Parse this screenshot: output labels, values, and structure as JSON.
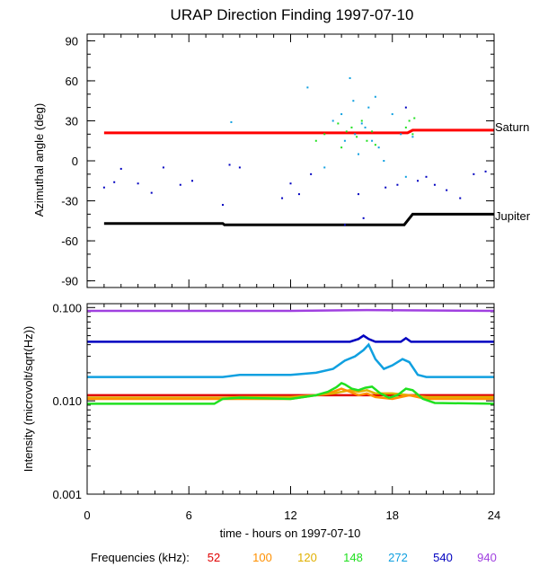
{
  "title": "URAP Direction Finding  1997-07-10",
  "xlabel": "time - hours on 1997-07-10",
  "x_ticks": [
    0,
    6,
    12,
    18,
    24
  ],
  "frequency_legend": {
    "label": "Frequencies (kHz):",
    "items": [
      {
        "name": "52",
        "color": "#e00000"
      },
      {
        "name": "100",
        "color": "#ff9000"
      },
      {
        "name": "120",
        "color": "#e0b000"
      },
      {
        "name": "148",
        "color": "#20e020"
      },
      {
        "name": "272",
        "color": "#10a0e0"
      },
      {
        "name": "540",
        "color": "#0000c0"
      },
      {
        "name": "940",
        "color": "#a040e0"
      }
    ]
  },
  "chart_data": [
    {
      "type": "scatter",
      "title": "URAP Direction Finding  1997-07-10",
      "xlabel": "time - hours on 1997-07-10",
      "ylabel": "Azimuthal angle (deg)",
      "xlim": [
        0,
        24
      ],
      "ylim": [
        -95,
        95
      ],
      "y_ticks": [
        90,
        60,
        30,
        0,
        -30,
        -60,
        -90
      ],
      "lines": [
        {
          "name": "Saturn",
          "color": "#ff0000",
          "x": [
            1,
            18.9,
            19.2,
            24
          ],
          "y": [
            21,
            21,
            23,
            23
          ]
        },
        {
          "name": "Jupiter",
          "color": "#000000",
          "x": [
            1,
            8,
            8.1,
            18.7,
            19.2,
            24
          ],
          "y": [
            -47,
            -47,
            -48,
            -48,
            -40,
            -40
          ]
        }
      ],
      "points": [
        {
          "color": "#0000c0",
          "x": [
            1.0,
            1.6,
            2.0,
            3.0,
            3.8,
            4.5,
            5.5,
            6.2,
            8.0,
            8.4,
            9.0,
            11.5,
            12.0,
            12.5,
            13.2,
            15.2,
            16.0,
            16.3,
            17.6,
            18.3,
            18.8,
            19.5,
            20.0,
            20.5,
            21.2,
            22.0,
            22.8,
            23.5
          ],
          "y": [
            -20,
            -16,
            -6,
            -17,
            -24,
            -5,
            -18,
            -15,
            -33,
            -3,
            -5,
            -28,
            -17,
            -25,
            -10,
            -48,
            -25,
            -43,
            -20,
            -18,
            40,
            -15,
            -12,
            -18,
            -22,
            -28,
            -10,
            -8
          ]
        },
        {
          "color": "#20e020",
          "x": [
            13.5,
            14.0,
            14.8,
            15.0,
            15.3,
            15.6,
            15.9,
            16.2,
            16.5,
            16.8,
            17.0,
            18.8,
            19.0,
            19.2,
            19.3
          ],
          "y": [
            15,
            20,
            28,
            10,
            22,
            25,
            18,
            30,
            15,
            22,
            12,
            25,
            30,
            20,
            32
          ]
        },
        {
          "color": "#10a0e0",
          "x": [
            8.5,
            13.0,
            14.0,
            14.5,
            15.0,
            15.2,
            15.5,
            15.7,
            15.8,
            16.0,
            16.2,
            16.4,
            16.6,
            16.8,
            17.0,
            17.2,
            17.5,
            18.0,
            18.5,
            18.8,
            19.2
          ],
          "y": [
            29,
            55,
            -5,
            30,
            35,
            15,
            62,
            45,
            20,
            5,
            28,
            25,
            40,
            15,
            48,
            10,
            0,
            35,
            20,
            -12,
            18
          ]
        }
      ]
    },
    {
      "type": "line",
      "xlabel": "time - hours on 1997-07-10",
      "ylabel": "Intensity (microvolt/sqrt(Hz))",
      "yscale": "log",
      "xlim": [
        0,
        24
      ],
      "ylim": [
        0.001,
        0.11
      ],
      "y_tick_labels": [
        "0.100",
        "0.010",
        "0.001"
      ],
      "series": [
        {
          "name": "940",
          "color": "#a040e0",
          "x": [
            0,
            12,
            16.5,
            24
          ],
          "y": [
            0.092,
            0.092,
            0.094,
            0.092
          ]
        },
        {
          "name": "540",
          "color": "#0000c0",
          "x": [
            0,
            15.5,
            16.0,
            16.3,
            16.6,
            17.0,
            18.5,
            18.8,
            19.1,
            24
          ],
          "y": [
            0.043,
            0.043,
            0.046,
            0.05,
            0.046,
            0.043,
            0.043,
            0.047,
            0.043,
            0.043
          ]
        },
        {
          "name": "272",
          "color": "#10a0e0",
          "x": [
            0,
            8.0,
            9.0,
            12.0,
            13.5,
            14.5,
            15.2,
            15.8,
            16.3,
            16.6,
            17.0,
            17.5,
            18.0,
            18.6,
            19.0,
            19.5,
            20.0,
            24
          ],
          "y": [
            0.018,
            0.018,
            0.019,
            0.019,
            0.02,
            0.022,
            0.027,
            0.03,
            0.035,
            0.04,
            0.028,
            0.022,
            0.024,
            0.028,
            0.026,
            0.019,
            0.018,
            0.018
          ]
        },
        {
          "name": "52",
          "color": "#e00000",
          "x": [
            0,
            12,
            24
          ],
          "y": [
            0.0115,
            0.0115,
            0.0115
          ]
        },
        {
          "name": "120",
          "color": "#e0b000",
          "x": [
            0,
            8,
            9,
            12,
            13.5,
            14.5,
            15.5,
            16.0,
            16.5,
            17.0,
            18.0,
            19.0,
            20,
            24
          ],
          "y": [
            0.0108,
            0.0108,
            0.011,
            0.011,
            0.0115,
            0.012,
            0.013,
            0.0125,
            0.013,
            0.012,
            0.012,
            0.0115,
            0.011,
            0.011
          ]
        },
        {
          "name": "100",
          "color": "#ff9000",
          "x": [
            0,
            8,
            12,
            13.5,
            14.5,
            15.0,
            15.5,
            16.0,
            16.5,
            17.0,
            18.0,
            19.0,
            20.0,
            24
          ],
          "y": [
            0.0105,
            0.0105,
            0.0105,
            0.0115,
            0.0125,
            0.0135,
            0.0125,
            0.0115,
            0.012,
            0.011,
            0.0105,
            0.0115,
            0.0105,
            0.0105
          ]
        },
        {
          "name": "148",
          "color": "#20e020",
          "x": [
            0,
            7.5,
            8.0,
            9.0,
            12.0,
            13.5,
            14.2,
            14.7,
            15.0,
            15.2,
            15.6,
            16.0,
            16.4,
            16.8,
            17.3,
            17.8,
            18.3,
            18.8,
            19.2,
            19.8,
            20.5,
            24
          ],
          "y": [
            0.0093,
            0.0093,
            0.0105,
            0.0108,
            0.0105,
            0.0115,
            0.0125,
            0.014,
            0.0155,
            0.015,
            0.0135,
            0.013,
            0.0138,
            0.0142,
            0.012,
            0.0108,
            0.0115,
            0.0135,
            0.013,
            0.0105,
            0.0095,
            0.0093
          ]
        }
      ]
    }
  ]
}
